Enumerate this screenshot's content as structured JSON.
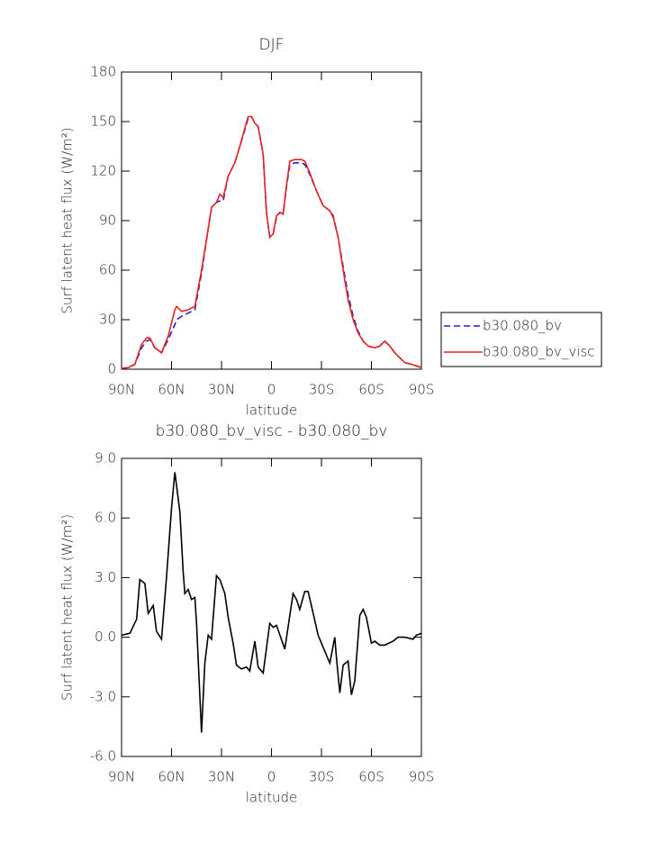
{
  "chart_data": [
    {
      "type": "line",
      "title": "DJF",
      "x_label": "latitude",
      "y_label": "Surf latent heat flux (W/m²)",
      "x": [
        90,
        86,
        82,
        78,
        75,
        73,
        70,
        66,
        62,
        58,
        57,
        54,
        50,
        46,
        42,
        38,
        36,
        33,
        31,
        29,
        26,
        22,
        19,
        16,
        14,
        12,
        10,
        8,
        5,
        3,
        1,
        -1,
        -3,
        -5,
        -7,
        -9,
        -11,
        -14,
        -18,
        -20,
        -23,
        -27,
        -31,
        -35,
        -37,
        -40,
        -43,
        -46,
        -49,
        -52,
        -55,
        -58,
        -62,
        -65,
        -68,
        -71,
        -74,
        -77,
        -80,
        -84,
        -87,
        -90
      ],
      "series": [
        {
          "name": "b30.080_bv",
          "color": "#1f1fd6",
          "line_style": "dashed",
          "values": [
            0.5,
            1,
            3,
            13,
            17,
            18,
            13,
            10,
            18,
            27,
            30,
            32,
            34,
            36,
            58,
            85,
            98,
            101,
            102,
            102,
            117,
            125,
            135,
            145,
            152,
            153,
            149,
            147,
            130,
            95,
            80,
            82,
            92,
            95,
            94,
            110,
            124,
            125,
            125,
            124,
            118,
            108,
            99,
            96,
            93,
            80,
            62,
            45,
            32,
            23,
            17,
            14,
            13,
            14,
            17,
            14,
            10,
            7,
            4,
            3,
            2,
            1
          ]
        },
        {
          "name": "b30.080_bv_visc",
          "color": "#e8231f",
          "line_style": "solid",
          "values": [
            0.5,
            1,
            3,
            15,
            19,
            19,
            13,
            10,
            20,
            36,
            38,
            35,
            36,
            38,
            60,
            85,
            98,
            101,
            106,
            104,
            117,
            125,
            135,
            146,
            153,
            153,
            149,
            147,
            130,
            95,
            80,
            82,
            93,
            95,
            94,
            111,
            126,
            127,
            127,
            126,
            119,
            108,
            99,
            96,
            92,
            80,
            60,
            42,
            30,
            22,
            17,
            14,
            13,
            14,
            17,
            14,
            10,
            7,
            4,
            3,
            2,
            1
          ]
        }
      ],
      "xlim": [
        90,
        -90
      ],
      "xticks": [
        {
          "value": 90,
          "label": "90N"
        },
        {
          "value": 60,
          "label": "60N"
        },
        {
          "value": 30,
          "label": "30N"
        },
        0,
        {
          "value": -30,
          "label": "30S"
        },
        {
          "value": -60,
          "label": "60S"
        },
        {
          "value": -90,
          "label": "90S"
        }
      ],
      "ylim": [
        0,
        180
      ],
      "yticks": [
        0,
        30,
        60,
        90,
        120,
        150,
        180
      ],
      "legend": "right"
    },
    {
      "type": "line",
      "title": "b30.080_bv_visc - b30.080_bv",
      "x_label": "latitude",
      "y_label": "Surf latent heat flux (W/m²)",
      "x": [
        90,
        85,
        81,
        79,
        76,
        74,
        71,
        69,
        66,
        63,
        60,
        58,
        55,
        53,
        52,
        50,
        48,
        46,
        45,
        42,
        40,
        38,
        36,
        33,
        31,
        28,
        26,
        23,
        21,
        18,
        15,
        13,
        10,
        8,
        5,
        1,
        -1,
        -3,
        -8,
        -13,
        -15,
        -17,
        -20,
        -22,
        -25,
        -28,
        -30,
        -34,
        -35,
        -38,
        -39,
        -41,
        -43,
        -46,
        -48,
        -50,
        -53,
        -55,
        -57,
        -60,
        -62,
        -65,
        -68,
        -73,
        -76,
        -80,
        -85,
        -87,
        -90
      ],
      "series": [
        {
          "color": "#000000",
          "line_style": "solid",
          "values": [
            0.1,
            0.2,
            0.9,
            2.9,
            2.7,
            1.2,
            1.6,
            0.3,
            -0.1,
            3.0,
            6.5,
            8.3,
            6.3,
            3.3,
            2.2,
            2.4,
            1.9,
            2.0,
            0.7,
            -4.8,
            -1.3,
            0.1,
            -0.1,
            3.1,
            2.9,
            2.2,
            1.0,
            -0.3,
            -1.4,
            -1.6,
            -1.5,
            -1.7,
            -0.2,
            -1.5,
            -1.8,
            0.7,
            0.5,
            0.6,
            -0.6,
            2.2,
            1.9,
            1.4,
            2.3,
            2.3,
            1.2,
            0.1,
            -0.3,
            -1.1,
            -1.3,
            0.0,
            -1.0,
            -2.8,
            -1.4,
            -1.2,
            -2.9,
            -2.2,
            1.1,
            1.4,
            1.0,
            -0.3,
            -0.2,
            -0.4,
            -0.4,
            -0.2,
            0.0,
            0.0,
            -0.1,
            0.1,
            0.2
          ]
        }
      ],
      "xlim": [
        90,
        -90
      ],
      "xticks": [
        {
          "value": 90,
          "label": "90N"
        },
        {
          "value": 60,
          "label": "60N"
        },
        {
          "value": 30,
          "label": "30N"
        },
        0,
        {
          "value": -30,
          "label": "30S"
        },
        {
          "value": -60,
          "label": "60S"
        },
        {
          "value": -90,
          "label": "90S"
        }
      ],
      "ylim": [
        -6,
        9
      ],
      "yticks": [
        {
          "value": -6,
          "label": "-6.0"
        },
        {
          "value": -3,
          "label": "-3.0"
        },
        {
          "value": 0,
          "label": "0.0"
        },
        {
          "value": 3,
          "label": "3.0"
        },
        {
          "value": 6,
          "label": "6.0"
        },
        {
          "value": 9,
          "label": "9.0"
        }
      ]
    }
  ]
}
